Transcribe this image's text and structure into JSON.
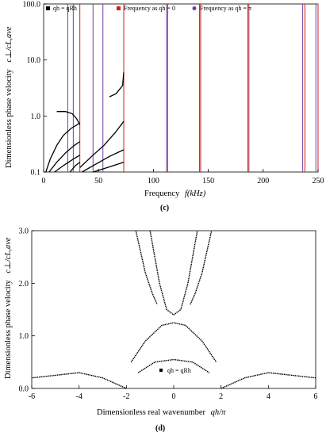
{
  "chart_data": [
    {
      "type": "line",
      "panel_label": "(c)",
      "xlabel": "Frequency  f(kHz)",
      "ylabel": "Dimensionless phase velocity  c⊥/cL,ave",
      "y_scale": "log",
      "xlim": [
        0,
        250
      ],
      "ylim": [
        0.1,
        100
      ],
      "x_ticks": [
        0,
        50,
        100,
        150,
        200,
        250
      ],
      "x_tick_labels": [
        "0",
        "50",
        "100",
        "150",
        "200",
        "250"
      ],
      "y_ticks": [
        0.1,
        1,
        10,
        100
      ],
      "y_tick_labels": [
        "0.1",
        "1.0",
        "10.0",
        "100.0"
      ],
      "legend": [
        "qh = qRh",
        "Frequency as qh = 0",
        "Frequency as qh = π"
      ],
      "legend_colors": [
        "#000000",
        "#d22020",
        "#6f3fa8"
      ],
      "cutoff_frequencies_qh0_kHz": [
        33,
        73,
        113,
        143,
        187,
        238,
        250
      ],
      "cutoff_frequencies_qhpi_kHz": [
        22,
        27,
        45,
        54,
        112,
        142,
        186,
        236,
        248
      ],
      "series": [
        {
          "name": "qh = qRh",
          "points": [
            [
              2,
              0.1
            ],
            [
              6,
              0.17
            ],
            [
              12,
              0.3
            ],
            [
              18,
              0.45
            ],
            [
              25,
              0.6
            ],
            [
              33,
              0.75
            ]
          ]
        },
        {
          "name": "qh = qRh",
          "points": [
            [
              5,
              0.1
            ],
            [
              12,
              0.15
            ],
            [
              20,
              0.22
            ],
            [
              28,
              0.3
            ],
            [
              33,
              0.35
            ]
          ]
        },
        {
          "name": "qh = qRh",
          "points": [
            [
              10,
              0.1
            ],
            [
              18,
              0.13
            ],
            [
              27,
              0.17
            ],
            [
              33,
              0.2
            ]
          ]
        },
        {
          "name": "qh = qRh",
          "points": [
            [
              24,
              0.1
            ],
            [
              29,
              0.13
            ],
            [
              33,
              0.15
            ]
          ]
        },
        {
          "name": "qh = qRh",
          "points": [
            [
              33,
              0.12
            ],
            [
              45,
              0.2
            ],
            [
              55,
              0.3
            ],
            [
              65,
              0.5
            ],
            [
              73,
              0.8
            ]
          ]
        },
        {
          "name": "qh = qRh",
          "points": [
            [
              35,
              0.1
            ],
            [
              48,
              0.14
            ],
            [
              60,
              0.19
            ],
            [
              73,
              0.25
            ]
          ]
        },
        {
          "name": "qh = qRh",
          "points": [
            [
              45,
              0.1
            ],
            [
              58,
              0.12
            ],
            [
              73,
              0.15
            ]
          ]
        },
        {
          "name": "qh = qRh",
          "points": [
            [
              12,
              1.2
            ],
            [
              20,
              1.2
            ],
            [
              26,
              1.1
            ],
            [
              30,
              0.9
            ],
            [
              33,
              0.7
            ]
          ]
        },
        {
          "name": "qh = qRh",
          "points": [
            [
              60,
              2.2
            ],
            [
              66,
              2.5
            ],
            [
              72,
              3.5
            ],
            [
              73,
              6
            ]
          ]
        }
      ]
    },
    {
      "type": "scatter",
      "panel_label": "(d)",
      "xlabel": "Dimensionless real wavenumber  qh/π",
      "ylabel": "Dimensionless phase velocity  c⊥/cL,ave",
      "xlim": [
        -6,
        6
      ],
      "ylim": [
        0,
        3
      ],
      "x_ticks": [
        -6,
        -4,
        -2,
        0,
        2,
        4,
        6
      ],
      "x_tick_labels": [
        "-6",
        "-4",
        "-2",
        "0",
        "2",
        "4",
        "6"
      ],
      "y_ticks": [
        0,
        1,
        2,
        3
      ],
      "y_tick_labels": [
        "0.0",
        "1.0",
        "2.0",
        "3.0"
      ],
      "legend": [
        "qh = qRh"
      ],
      "series": [
        {
          "name": "qh = qRh",
          "points": [
            [
              -1.5,
              0.3
            ],
            [
              -0.8,
              0.5
            ],
            [
              0,
              0.55
            ],
            [
              0.8,
              0.5
            ],
            [
              1.5,
              0.3
            ]
          ]
        },
        {
          "name": "qh = qRh",
          "points": [
            [
              -1.8,
              0.5
            ],
            [
              -1.2,
              0.9
            ],
            [
              -0.5,
              1.2
            ],
            [
              0,
              1.25
            ],
            [
              0.5,
              1.2
            ],
            [
              1.2,
              0.9
            ],
            [
              1.8,
              0.5
            ]
          ]
        },
        {
          "name": "qh = qRh",
          "points": [
            [
              -1.0,
              3.0
            ],
            [
              -0.6,
              2.0
            ],
            [
              -0.3,
              1.5
            ],
            [
              0,
              1.4
            ],
            [
              0.3,
              1.5
            ],
            [
              0.6,
              2.0
            ],
            [
              1.0,
              3.0
            ]
          ]
        },
        {
          "name": "qh = qRh",
          "points": [
            [
              -1.6,
              3.0
            ],
            [
              -1.2,
              2.2
            ],
            [
              -0.9,
              1.8
            ],
            [
              -0.7,
              1.6
            ]
          ]
        },
        {
          "name": "qh = qRh",
          "points": [
            [
              0.7,
              1.6
            ],
            [
              0.9,
              1.8
            ],
            [
              1.2,
              2.2
            ],
            [
              1.6,
              3.0
            ]
          ]
        },
        {
          "name": "qh = qRh",
          "points": [
            [
              -2.0,
              0
            ],
            [
              -3.0,
              0.2
            ],
            [
              -4.0,
              0.3
            ],
            [
              -5.0,
              0.25
            ],
            [
              -6.0,
              0.2
            ]
          ]
        },
        {
          "name": "qh = qRh",
          "points": [
            [
              2.0,
              0
            ],
            [
              3.0,
              0.2
            ],
            [
              4.0,
              0.3
            ],
            [
              5.0,
              0.25
            ],
            [
              6.0,
              0.2
            ]
          ]
        }
      ]
    }
  ],
  "captions": {
    "c": "(c)",
    "d": "(d)"
  },
  "axis_text": {
    "c": {
      "ylabel_main": "Dimensionless phase velocity",
      "ylabel_symbol": "c⊥/cL,ave",
      "xlabel_main": "Frequency",
      "xlabel_symbol": "f(kHz)"
    },
    "d": {
      "ylabel_main": "Dimensionless phase velocity",
      "ylabel_symbol": "c⊥/cL,ave",
      "xlabel_main": "Dimensionless real wavenumber",
      "xlabel_symbol": "qh/π"
    }
  },
  "legend_c": [
    {
      "label": "qh = qRh",
      "color": "#000000",
      "shape": "square"
    },
    {
      "label": "Frequency as qh = 0",
      "color": "#d22020",
      "shape": "square"
    },
    {
      "label": "Frequency as qh = π",
      "color": "#6f3fa8",
      "shape": "dot"
    }
  ],
  "legend_d": {
    "label": "qh = qRh"
  }
}
